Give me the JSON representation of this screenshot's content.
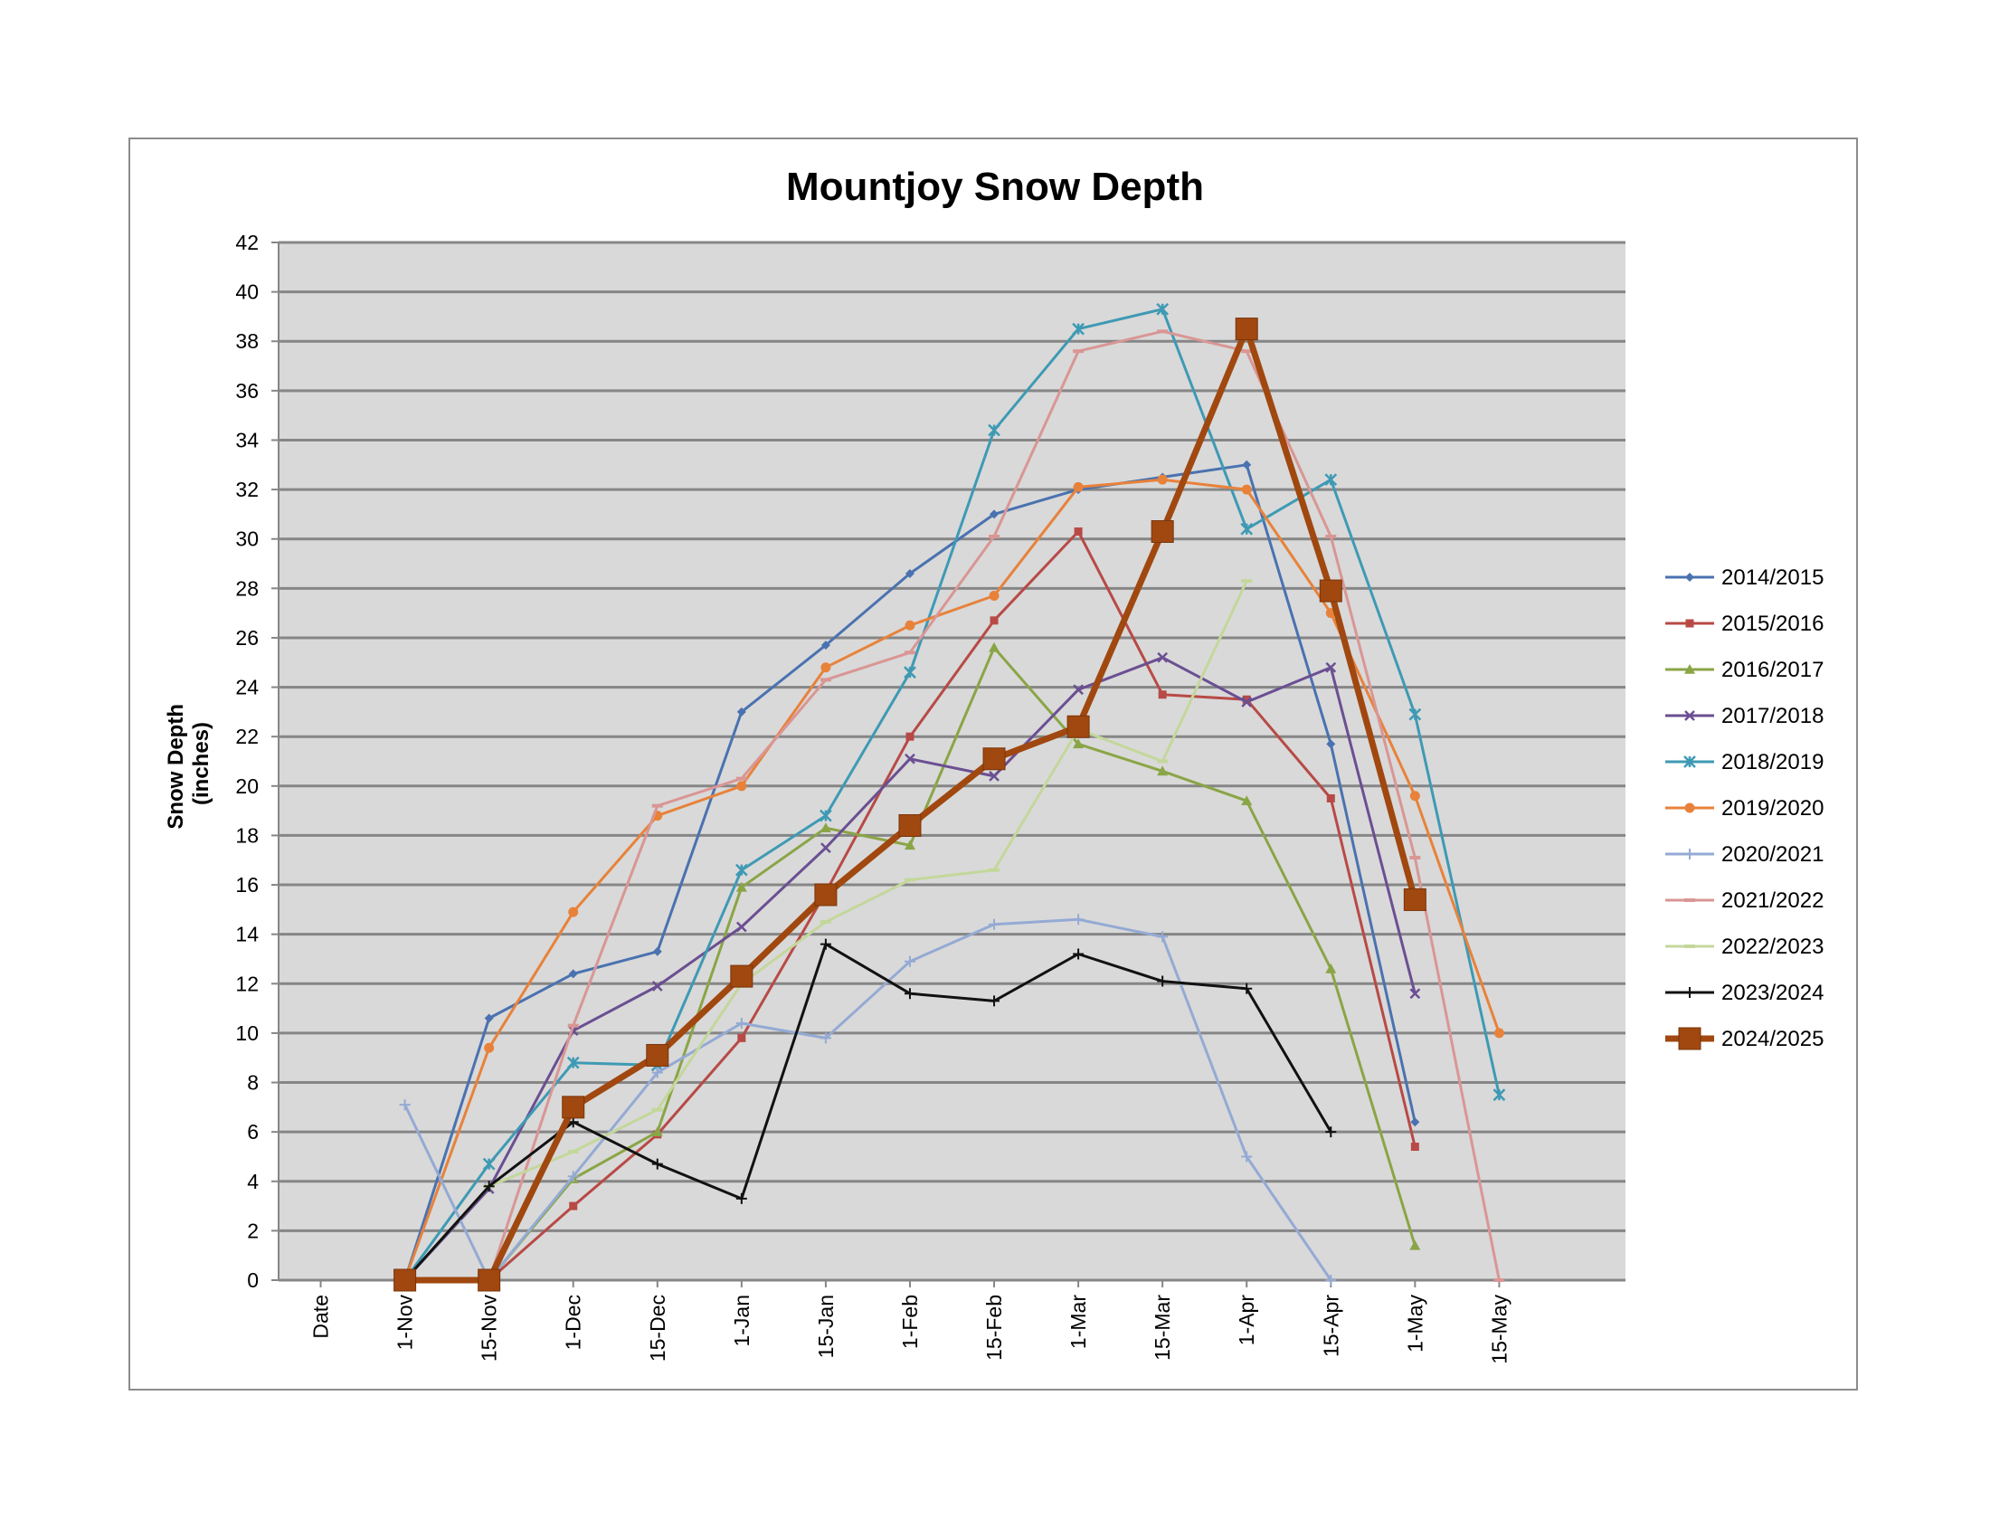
{
  "chart_data": {
    "type": "line",
    "title": "Mountjoy Snow Depth",
    "ylabel_lines": [
      "Snow Depth",
      "(inches)"
    ],
    "xlabel": "",
    "categories": [
      "Date",
      "1-Nov",
      "15-Nov",
      "1-Dec",
      "15-Dec",
      "1-Jan",
      "15-Jan",
      "1-Feb",
      "15-Feb",
      "1-Mar",
      "15-Mar",
      "1-Apr",
      "15-Apr",
      "1-May",
      "15-May"
    ],
    "ylim": [
      0,
      42
    ],
    "yticks": [
      0,
      2,
      4,
      6,
      8,
      10,
      12,
      14,
      16,
      18,
      20,
      22,
      24,
      26,
      28,
      30,
      32,
      34,
      36,
      38,
      40,
      42
    ],
    "grid": true,
    "legend_position": "right",
    "series": [
      {
        "name": "2014/2015",
        "color": "#4a72b0",
        "marker": "diamond",
        "values": [
          null,
          0,
          10.6,
          12.4,
          13.3,
          23.0,
          25.7,
          28.6,
          31.0,
          32.0,
          32.5,
          33.0,
          21.7,
          6.4,
          null
        ]
      },
      {
        "name": "2015/2016",
        "color": "#b84a46",
        "marker": "square",
        "values": [
          null,
          0,
          0,
          3.0,
          5.9,
          9.8,
          15.7,
          22.0,
          26.7,
          30.3,
          23.7,
          23.5,
          19.5,
          5.4,
          null
        ]
      },
      {
        "name": "2016/2017",
        "color": "#8aa546",
        "marker": "triangle",
        "values": [
          null,
          0,
          0,
          4.1,
          6.0,
          15.9,
          18.3,
          17.6,
          25.6,
          21.7,
          20.6,
          19.4,
          12.6,
          1.4,
          null
        ]
      },
      {
        "name": "2017/2018",
        "color": "#6b4f92",
        "marker": "x",
        "values": [
          null,
          0,
          3.7,
          10.1,
          11.9,
          14.3,
          17.5,
          21.1,
          20.4,
          23.9,
          25.2,
          23.4,
          24.8,
          11.6,
          null
        ]
      },
      {
        "name": "2018/2019",
        "color": "#3e9ab4",
        "marker": "star",
        "values": [
          null,
          0,
          4.7,
          8.8,
          8.7,
          16.6,
          18.8,
          24.6,
          34.4,
          38.5,
          39.3,
          30.4,
          32.4,
          22.9,
          7.5
        ]
      },
      {
        "name": "2019/2020",
        "color": "#e8823a",
        "marker": "circle",
        "values": [
          null,
          0,
          9.4,
          14.9,
          18.8,
          20.0,
          24.8,
          26.5,
          27.7,
          32.1,
          32.4,
          32.0,
          27.0,
          19.6,
          10.0
        ]
      },
      {
        "name": "2020/2021",
        "color": "#94aad4",
        "marker": "plus",
        "values": [
          null,
          7.1,
          0,
          4.2,
          8.4,
          10.4,
          9.8,
          12.9,
          14.4,
          14.6,
          13.9,
          5.0,
          0,
          null,
          null
        ]
      },
      {
        "name": "2021/2022",
        "color": "#d99694",
        "marker": "dash",
        "values": [
          null,
          0,
          0,
          10.3,
          19.2,
          20.3,
          24.3,
          25.4,
          30.1,
          37.6,
          38.4,
          37.6,
          30.1,
          17.1,
          0
        ]
      },
      {
        "name": "2022/2023",
        "color": "#c4d79b",
        "marker": "dash",
        "values": [
          null,
          0,
          3.8,
          5.2,
          6.9,
          12.0,
          14.5,
          16.2,
          16.6,
          22.3,
          21.0,
          28.3,
          null,
          null,
          null
        ]
      },
      {
        "name": "2023/2024",
        "color": "#111111",
        "marker": "plus",
        "values": [
          null,
          0,
          3.8,
          6.4,
          4.7,
          3.3,
          13.6,
          11.6,
          11.3,
          13.2,
          12.1,
          11.8,
          6.0,
          null,
          null
        ]
      },
      {
        "name": "2024/2025",
        "color": "#a0480f",
        "marker": "bigsquare",
        "bold": true,
        "values": [
          null,
          0,
          0,
          7.0,
          9.1,
          12.3,
          15.6,
          18.4,
          21.1,
          22.4,
          30.3,
          38.5,
          27.9,
          15.4,
          null
        ]
      }
    ]
  }
}
